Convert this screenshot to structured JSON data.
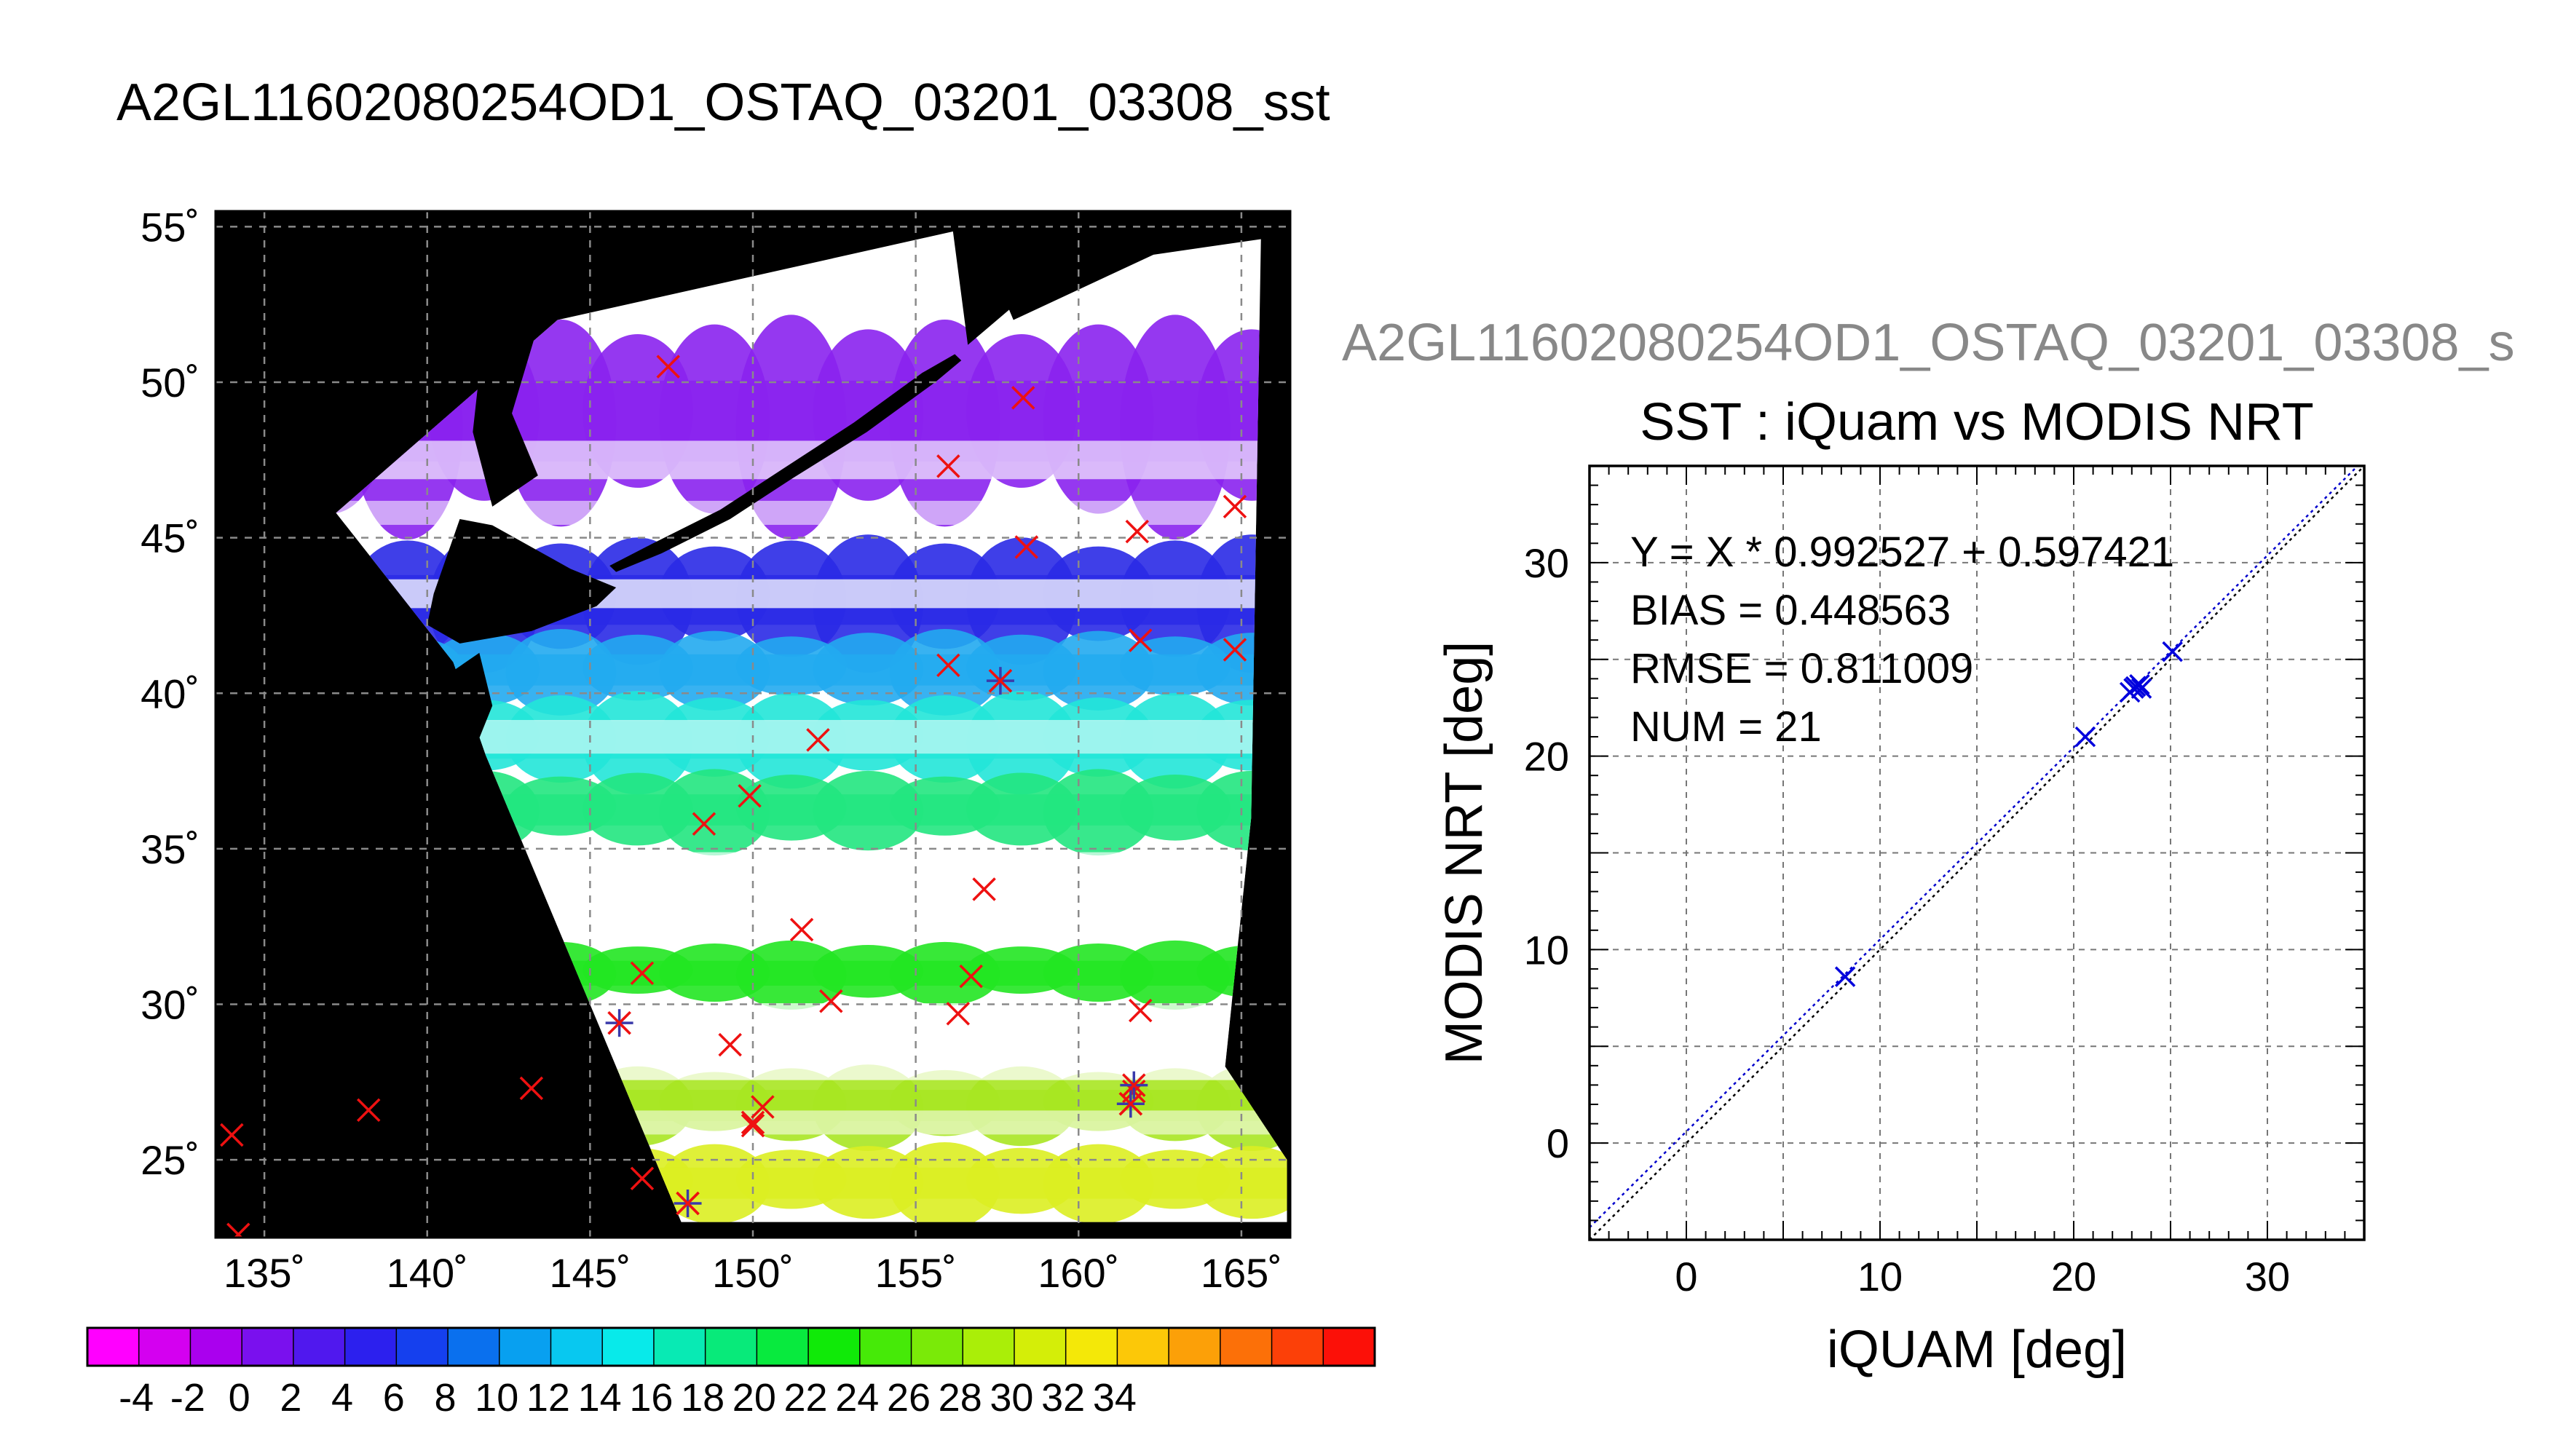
{
  "page": {
    "title": "A2GL11602080254OD1_OSTAQ_03201_03308_sst",
    "scatter_subtitle": "A2GL11602080254OD1_OSTAQ_03201_03308_s"
  },
  "chart_data": [
    {
      "type": "heatmap",
      "kind": "map",
      "title": "",
      "xlabel": "",
      "ylabel": "",
      "xlim": [
        133.5,
        166.5
      ],
      "ylim": [
        22.5,
        55.5
      ],
      "x_ticks": [
        {
          "value": 135,
          "label": "135˚"
        },
        {
          "value": 140,
          "label": "140˚"
        },
        {
          "value": 145,
          "label": "145˚"
        },
        {
          "value": 150,
          "label": "150˚"
        },
        {
          "value": 155,
          "label": "155˚"
        },
        {
          "value": 160,
          "label": "160˚"
        },
        {
          "value": 165,
          "label": "165˚"
        }
      ],
      "y_ticks": [
        {
          "value": 25,
          "label": "25˚"
        },
        {
          "value": 30,
          "label": "30˚"
        },
        {
          "value": 35,
          "label": "35˚"
        },
        {
          "value": 40,
          "label": "40˚"
        },
        {
          "value": 45,
          "label": "45˚"
        },
        {
          "value": 50,
          "label": "50˚"
        },
        {
          "value": 55,
          "label": "55˚"
        }
      ],
      "grid": true,
      "background": "#000000",
      "swath_polygon_lonlat": [
        [
          137.2,
          45.8
        ],
        [
          144.0,
          52.0
        ],
        [
          156.8,
          55.0
        ],
        [
          158.0,
          52.0
        ],
        [
          162.3,
          54.1
        ],
        [
          165.6,
          54.6
        ],
        [
          165.3,
          36.0
        ],
        [
          164.5,
          28.0
        ],
        [
          166.4,
          25.0
        ],
        [
          166.4,
          23.0
        ],
        [
          147.8,
          23.0
        ],
        [
          141.8,
          38.0
        ],
        [
          140.8,
          41.0
        ]
      ],
      "sst_bands": [
        {
          "lat_from": 45.5,
          "lat_to": 52.0,
          "color": "#8a22ee",
          "sst": 0
        },
        {
          "lat_from": 41.0,
          "lat_to": 45.0,
          "color": "#2a2ae6",
          "sst": 4
        },
        {
          "lat_from": 39.5,
          "lat_to": 42.0,
          "color": "#22aaf0",
          "sst": 8
        },
        {
          "lat_from": 37.0,
          "lat_to": 40.0,
          "color": "#22e6d8",
          "sst": 13
        },
        {
          "lat_from": 35.0,
          "lat_to": 37.5,
          "color": "#22e680",
          "sst": 17
        },
        {
          "lat_from": 30.0,
          "lat_to": 32.0,
          "color": "#22e622",
          "sst": 21
        },
        {
          "lat_from": 25.5,
          "lat_to": 28.0,
          "color": "#a8e622",
          "sst": 25
        },
        {
          "lat_from": 23.0,
          "lat_to": 25.5,
          "color": "#dcee22",
          "sst": 27
        }
      ],
      "land_color": "#000000",
      "cloud_color": "#ffffff",
      "iquam_points_red_x": [
        [
          134.0,
          25.8
        ],
        [
          134.2,
          22.6
        ],
        [
          138.2,
          26.6
        ],
        [
          143.2,
          27.3
        ],
        [
          146.6,
          24.4
        ],
        [
          146.6,
          31.0
        ],
        [
          145.9,
          29.4
        ],
        [
          148.0,
          23.6
        ],
        [
          147.4,
          50.5
        ],
        [
          148.5,
          35.8
        ],
        [
          149.3,
          28.7
        ],
        [
          149.9,
          36.7
        ],
        [
          150.0,
          26.1
        ],
        [
          150.0,
          26.2
        ],
        [
          150.3,
          26.7
        ],
        [
          151.5,
          32.4
        ],
        [
          152.0,
          38.5
        ],
        [
          152.4,
          30.1
        ],
        [
          156.0,
          47.3
        ],
        [
          156.0,
          40.9
        ],
        [
          156.3,
          29.7
        ],
        [
          156.7,
          30.9
        ],
        [
          157.1,
          33.7
        ],
        [
          157.6,
          40.4
        ],
        [
          158.3,
          49.5
        ],
        [
          158.4,
          44.7
        ],
        [
          161.6,
          26.8
        ],
        [
          161.7,
          27.2
        ],
        [
          161.8,
          45.2
        ],
        [
          161.9,
          41.7
        ],
        [
          161.9,
          29.8
        ],
        [
          164.8,
          46.0
        ],
        [
          164.8,
          41.4
        ]
      ],
      "matchup_points_blue_plus": [
        [
          145.9,
          29.4
        ],
        [
          148.0,
          23.6
        ],
        [
          157.6,
          40.4
        ],
        [
          161.6,
          26.8
        ],
        [
          161.7,
          27.4
        ]
      ]
    },
    {
      "type": "scatter",
      "title": "SST : iQuam vs MODIS NRT",
      "xlabel": "iQUAM [deg]",
      "ylabel": "MODIS NRT [deg]",
      "xlim": [
        -5,
        35
      ],
      "ylim": [
        -5,
        35
      ],
      "x_ticks": [
        0,
        10,
        20,
        30
      ],
      "y_ticks": [
        0,
        10,
        20,
        30
      ],
      "grid": true,
      "annotations": [
        "Y = X * 0.992527 + 0.597421",
        "BIAS = 0.448563",
        "RMSE = 0.811009",
        "NUM = 21"
      ],
      "fit": {
        "slope": 0.992527,
        "intercept": 0.597421
      },
      "points": [
        [
          8.2,
          8.6
        ],
        [
          20.6,
          21.0
        ],
        [
          22.9,
          23.3
        ],
        [
          23.1,
          23.5
        ],
        [
          23.2,
          23.6
        ],
        [
          23.4,
          23.7
        ],
        [
          23.5,
          23.5
        ],
        [
          25.1,
          25.4
        ]
      ],
      "point_color": "#0000dd"
    }
  ],
  "colorbar": {
    "ticks": [
      "-4",
      "-2",
      "0",
      "2",
      "4",
      "6",
      "8",
      "10",
      "12",
      "14",
      "16",
      "18",
      "20",
      "22",
      "24",
      "26",
      "28",
      "30",
      "32",
      "34"
    ],
    "colors": [
      "#ff00ff",
      "#d400f0",
      "#aa00ee",
      "#7a10ee",
      "#5018ee",
      "#2c20ee",
      "#1540ee",
      "#0a70ee",
      "#08a0f0",
      "#08c8f0",
      "#08eaea",
      "#08eab4",
      "#08ea7a",
      "#08ea3e",
      "#10ea08",
      "#46ea08",
      "#7aea08",
      "#aaee08",
      "#d4ee08",
      "#f4e808",
      "#fcc808",
      "#fca008",
      "#fc7008",
      "#fc4008",
      "#fc1008"
    ]
  }
}
